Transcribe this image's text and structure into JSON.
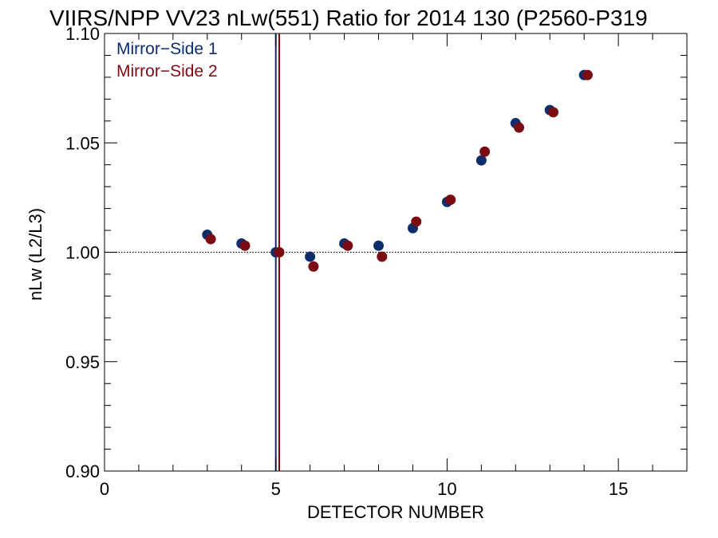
{
  "chart_data": {
    "type": "scatter",
    "title": "VIIRS/NPP VV23 nLw(551) Ratio for 2014 130 (P2560-P319",
    "xlabel": "DETECTOR NUMBER",
    "ylabel": "nLw (L2/L3)",
    "xlim": [
      0,
      17
    ],
    "ylim": [
      0.9,
      1.1
    ],
    "x_ticks": [
      0,
      5,
      10,
      15
    ],
    "x_tick_labels": [
      "0",
      "5",
      "10",
      "15"
    ],
    "y_ticks": [
      0.9,
      0.95,
      1.0,
      1.05,
      1.1
    ],
    "y_tick_labels": [
      "0.90",
      "0.95",
      "1.00",
      "1.05",
      "1.10"
    ],
    "reference_line_y": 1.0,
    "legend_position": "top-left",
    "series": [
      {
        "name": "Mirror−Side 1",
        "color": "#0d2d6b",
        "vline_x": 5.0,
        "x": [
          3,
          4,
          5,
          6,
          7,
          8,
          9,
          10,
          11,
          12,
          13,
          14
        ],
        "y": [
          1.008,
          1.004,
          1.0,
          0.998,
          1.004,
          1.003,
          1.011,
          1.023,
          1.042,
          1.059,
          1.065,
          1.081
        ]
      },
      {
        "name": "Mirror−Side 2",
        "color": "#7a0d14",
        "vline_x": 5.1,
        "x": [
          3.1,
          4.1,
          5.1,
          6.1,
          7.1,
          8.1,
          9.1,
          10.1,
          11.1,
          12.1,
          13.1,
          14.1
        ],
        "y": [
          1.006,
          1.003,
          1.0,
          0.9935,
          1.003,
          0.998,
          1.014,
          1.024,
          1.046,
          1.057,
          1.064,
          1.081
        ]
      }
    ]
  }
}
